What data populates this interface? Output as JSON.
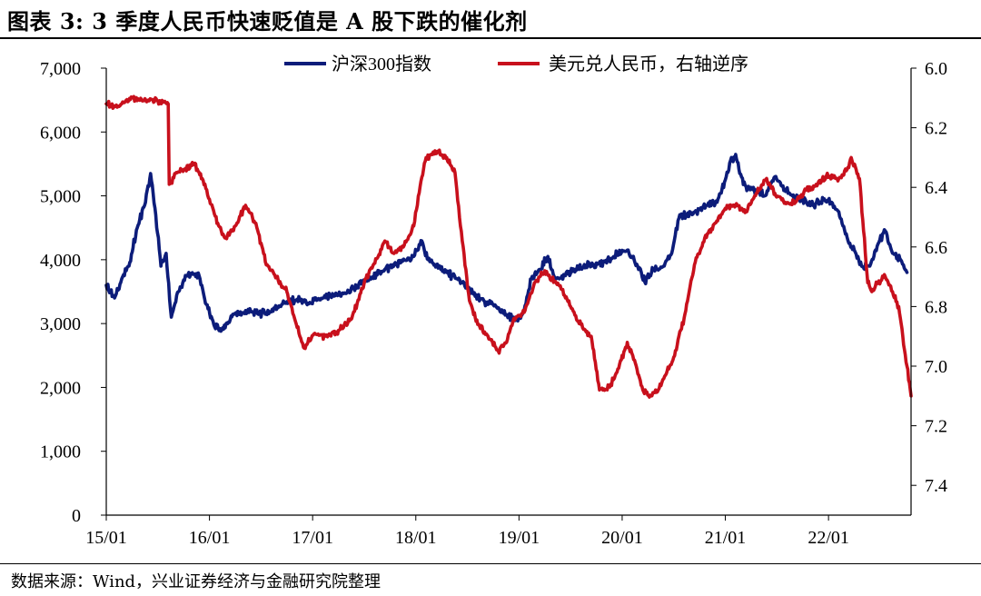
{
  "figure": {
    "title": "图表 3:  3 季度人民币快速贬值是 A 股下跌的催化剂",
    "source": "数据来源：Wind，兴业证券经济与金融研究院整理"
  },
  "colors": {
    "csi300": "#0c1c7a",
    "usdcny": "#c8101c",
    "axis": "#000000"
  },
  "chart_data": {
    "type": "line",
    "title": "3 季度人民币快速贬值是 A 股下跌的催化剂",
    "legend_position": "top",
    "x_tick_labels": [
      "15/01",
      "16/01",
      "17/01",
      "18/01",
      "19/01",
      "20/01",
      "21/01",
      "22/01"
    ],
    "x_range": [
      2015.0,
      2022.8
    ],
    "y_left": {
      "label": "沪深300指数",
      "ylim": [
        0,
        7000
      ],
      "ticks": [
        0,
        1000,
        2000,
        3000,
        4000,
        5000,
        6000,
        7000
      ],
      "tick_labels": [
        "0",
        "1,000",
        "2,000",
        "3,000",
        "4,000",
        "5,000",
        "6,000",
        "7,000"
      ]
    },
    "y_right": {
      "label": "美元兑人民币，右轴逆序",
      "ylim": [
        6.0,
        7.5
      ],
      "inverted": true,
      "ticks": [
        6.0,
        6.2,
        6.4,
        6.6,
        6.8,
        7.0,
        7.2,
        7.4
      ],
      "tick_labels": [
        "6.0",
        "6.2",
        "6.4",
        "6.6",
        "6.8",
        "7.0",
        "7.2",
        "7.4"
      ]
    },
    "series": [
      {
        "name": "沪深300指数",
        "axis": "left",
        "color": "#0c1c7a",
        "x": [
          2015.0,
          2015.08,
          2015.15,
          2015.22,
          2015.3,
          2015.38,
          2015.43,
          2015.48,
          2015.53,
          2015.58,
          2015.63,
          2015.7,
          2015.8,
          2015.9,
          2015.97,
          2016.05,
          2016.12,
          2016.25,
          2016.4,
          2016.55,
          2016.7,
          2016.85,
          2016.98,
          2017.1,
          2017.25,
          2017.4,
          2017.55,
          2017.7,
          2017.85,
          2017.98,
          2018.05,
          2018.12,
          2018.2,
          2018.3,
          2018.4,
          2018.5,
          2018.6,
          2018.7,
          2018.8,
          2018.9,
          2018.98,
          2019.05,
          2019.12,
          2019.2,
          2019.28,
          2019.35,
          2019.45,
          2019.55,
          2019.65,
          2019.75,
          2019.85,
          2019.95,
          2020.05,
          2020.15,
          2020.22,
          2020.3,
          2020.4,
          2020.48,
          2020.55,
          2020.62,
          2020.72,
          2020.82,
          2020.92,
          2021.0,
          2021.05,
          2021.1,
          2021.14,
          2021.2,
          2021.28,
          2021.38,
          2021.48,
          2021.55,
          2021.65,
          2021.75,
          2021.85,
          2021.95,
          2022.03,
          2022.1,
          2022.18,
          2022.25,
          2022.32,
          2022.4,
          2022.48,
          2022.55,
          2022.62,
          2022.7,
          2022.76
        ],
        "values": [
          3600,
          3400,
          3700,
          3900,
          4500,
          4900,
          5350,
          4700,
          3900,
          4100,
          3100,
          3500,
          3800,
          3750,
          3300,
          2950,
          2900,
          3150,
          3200,
          3150,
          3300,
          3380,
          3320,
          3400,
          3450,
          3550,
          3700,
          3850,
          3950,
          4050,
          4300,
          4000,
          3900,
          3800,
          3700,
          3550,
          3400,
          3300,
          3250,
          3100,
          3050,
          3200,
          3700,
          3850,
          4050,
          3700,
          3750,
          3850,
          3900,
          3950,
          3950,
          4100,
          4150,
          3900,
          3650,
          3850,
          3900,
          4100,
          4650,
          4700,
          4750,
          4850,
          4900,
          5250,
          5550,
          5650,
          5350,
          5150,
          5100,
          5000,
          5300,
          5150,
          5000,
          4950,
          4850,
          4950,
          4900,
          4750,
          4350,
          4150,
          3900,
          3900,
          4250,
          4450,
          4100,
          4000,
          3800
        ]
      },
      {
        "name": "美元兑人民币，右轴逆序",
        "axis": "right",
        "color": "#c8101c",
        "x": [
          2015.0,
          2015.08,
          2015.15,
          2015.25,
          2015.35,
          2015.5,
          2015.6,
          2015.61,
          2015.68,
          2015.76,
          2015.85,
          2015.93,
          2016.0,
          2016.08,
          2016.15,
          2016.25,
          2016.35,
          2016.45,
          2016.55,
          2016.65,
          2016.75,
          2016.85,
          2016.92,
          2017.02,
          2017.12,
          2017.25,
          2017.38,
          2017.5,
          2017.62,
          2017.7,
          2017.78,
          2017.88,
          2017.98,
          2018.05,
          2018.1,
          2018.16,
          2018.22,
          2018.3,
          2018.38,
          2018.45,
          2018.52,
          2018.6,
          2018.7,
          2018.8,
          2018.88,
          2018.95,
          2019.05,
          2019.15,
          2019.25,
          2019.32,
          2019.4,
          2019.5,
          2019.6,
          2019.7,
          2019.78,
          2019.88,
          2019.95,
          2020.05,
          2020.12,
          2020.2,
          2020.28,
          2020.35,
          2020.42,
          2020.5,
          2020.6,
          2020.7,
          2020.8,
          2020.9,
          2021.0,
          2021.1,
          2021.2,
          2021.3,
          2021.4,
          2021.48,
          2021.58,
          2021.68,
          2021.78,
          2021.88,
          2021.98,
          2022.1,
          2022.18,
          2022.22,
          2022.3,
          2022.38,
          2022.42,
          2022.48,
          2022.55,
          2022.62,
          2022.68,
          2022.72,
          2022.76,
          2022.8
        ],
        "values": [
          6.12,
          6.13,
          6.12,
          6.1,
          6.11,
          6.11,
          6.12,
          6.39,
          6.35,
          6.34,
          6.32,
          6.37,
          6.44,
          6.52,
          6.57,
          6.53,
          6.46,
          6.52,
          6.66,
          6.7,
          6.75,
          6.87,
          6.94,
          6.89,
          6.9,
          6.88,
          6.84,
          6.72,
          6.64,
          6.58,
          6.62,
          6.6,
          6.53,
          6.38,
          6.3,
          6.29,
          6.28,
          6.3,
          6.35,
          6.58,
          6.78,
          6.86,
          6.9,
          6.95,
          6.92,
          6.84,
          6.82,
          6.72,
          6.68,
          6.71,
          6.73,
          6.8,
          6.86,
          6.9,
          7.08,
          7.07,
          7.02,
          6.92,
          6.98,
          7.08,
          7.1,
          7.08,
          7.03,
          6.97,
          6.84,
          6.66,
          6.57,
          6.52,
          6.47,
          6.46,
          6.48,
          6.42,
          6.37,
          6.42,
          6.45,
          6.45,
          6.41,
          6.39,
          6.36,
          6.37,
          6.34,
          6.3,
          6.37,
          6.72,
          6.75,
          6.72,
          6.7,
          6.75,
          6.8,
          6.9,
          7.0,
          7.1
        ]
      }
    ]
  }
}
